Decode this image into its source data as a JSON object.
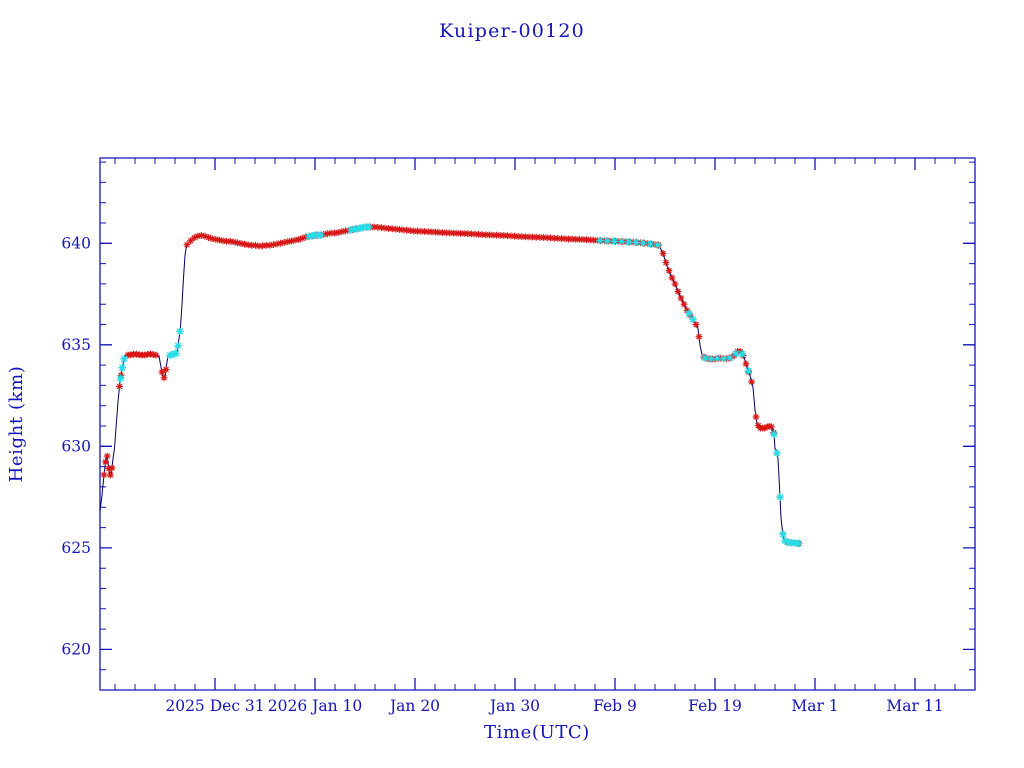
{
  "chart_data": {
    "type": "line",
    "title": "Kuiper-00120",
    "xlabel": "Time(UTC)",
    "ylabel": "Height (km)",
    "x_unit": "days since 2025-12-31 00:00 UTC",
    "xlim": [
      -11.5,
      76
    ],
    "ylim": [
      618.0,
      644.2
    ],
    "x_ticks": [
      {
        "day": 0,
        "label": "2025 Dec 31"
      },
      {
        "day": 10,
        "label": "2026 Jan 10"
      },
      {
        "day": 20,
        "label": "Jan 20"
      },
      {
        "day": 30,
        "label": "Jan 30"
      },
      {
        "day": 40,
        "label": "Feb 9"
      },
      {
        "day": 50,
        "label": "Feb 19"
      },
      {
        "day": 60,
        "label": "Mar 1"
      },
      {
        "day": 70,
        "label": "Mar 11"
      }
    ],
    "x_minor_step": 2,
    "y_ticks": [
      620,
      625,
      630,
      635,
      640
    ],
    "y_minor_step": 1,
    "grid": false,
    "legend": "none",
    "colors": {
      "axis": "#1414b8",
      "text": "#1414b8",
      "line": "#000060",
      "marker_red": "#d81414",
      "marker_cyan": "#28dce8"
    },
    "line": [
      [
        -11.5,
        626.8
      ],
      [
        -11.3,
        627.6
      ],
      [
        -11.1,
        628.6
      ],
      [
        -10.95,
        629.2
      ],
      [
        -10.8,
        629.6
      ],
      [
        -10.65,
        629.0
      ],
      [
        -10.5,
        628.55
      ],
      [
        -10.35,
        628.7
      ],
      [
        -10.2,
        629.4
      ],
      [
        -10.05,
        629.9
      ],
      [
        -9.9,
        630.9
      ],
      [
        -9.7,
        632.2
      ],
      [
        -9.5,
        633.2
      ],
      [
        -9.3,
        633.8
      ],
      [
        -9.1,
        634.3
      ],
      [
        -8.9,
        634.5
      ],
      [
        -8.5,
        634.5
      ],
      [
        -8.0,
        634.55
      ],
      [
        -7.5,
        634.5
      ],
      [
        -7.0,
        634.5
      ],
      [
        -6.5,
        634.55
      ],
      [
        -6.0,
        634.5
      ],
      [
        -5.6,
        634.45
      ],
      [
        -5.4,
        633.9
      ],
      [
        -5.2,
        633.4
      ],
      [
        -5.0,
        633.35
      ],
      [
        -4.85,
        634.0
      ],
      [
        -4.7,
        634.45
      ],
      [
        -4.4,
        634.5
      ],
      [
        -4.1,
        634.55
      ],
      [
        -3.8,
        634.6
      ],
      [
        -3.6,
        635.3
      ],
      [
        -3.45,
        635.85
      ],
      [
        -3.3,
        637.0
      ],
      [
        -3.15,
        638.3
      ],
      [
        -3.0,
        639.4
      ],
      [
        -2.85,
        639.9
      ],
      [
        -2.5,
        640.1
      ],
      [
        -2.0,
        640.3
      ],
      [
        -1.5,
        640.4
      ],
      [
        -1.0,
        640.35
      ],
      [
        -0.5,
        640.25
      ],
      [
        0.0,
        640.2
      ],
      [
        0.5,
        640.15
      ],
      [
        1.0,
        640.1
      ],
      [
        1.5,
        640.1
      ],
      [
        2.0,
        640.05
      ],
      [
        2.5,
        640.0
      ],
      [
        3.0,
        639.95
      ],
      [
        3.5,
        639.9
      ],
      [
        4.0,
        639.9
      ],
      [
        4.5,
        639.85
      ],
      [
        5.0,
        639.9
      ],
      [
        5.5,
        639.9
      ],
      [
        6.0,
        639.95
      ],
      [
        6.5,
        640.0
      ],
      [
        7.0,
        640.05
      ],
      [
        7.5,
        640.1
      ],
      [
        8.0,
        640.15
      ],
      [
        8.5,
        640.2
      ],
      [
        9.0,
        640.3
      ],
      [
        9.5,
        640.35
      ],
      [
        10.0,
        640.4
      ],
      [
        10.5,
        640.4
      ],
      [
        11.0,
        640.45
      ],
      [
        11.5,
        640.5
      ],
      [
        12.0,
        640.5
      ],
      [
        12.5,
        640.55
      ],
      [
        13.0,
        640.6
      ],
      [
        13.5,
        640.65
      ],
      [
        14.0,
        640.7
      ],
      [
        14.5,
        640.75
      ],
      [
        15.0,
        640.8
      ],
      [
        15.5,
        640.8
      ],
      [
        16.0,
        640.8
      ],
      [
        16.5,
        640.78
      ],
      [
        17.0,
        640.75
      ],
      [
        17.5,
        640.72
      ],
      [
        18.0,
        640.7
      ],
      [
        19.0,
        640.65
      ],
      [
        20.0,
        640.6
      ],
      [
        21.0,
        640.58
      ],
      [
        22.0,
        640.55
      ],
      [
        23.0,
        640.52
      ],
      [
        24.0,
        640.5
      ],
      [
        25.0,
        640.48
      ],
      [
        26.0,
        640.45
      ],
      [
        27.0,
        640.42
      ],
      [
        28.0,
        640.4
      ],
      [
        29.0,
        640.38
      ],
      [
        30.0,
        640.35
      ],
      [
        31.0,
        640.32
      ],
      [
        32.0,
        640.3
      ],
      [
        33.0,
        640.28
      ],
      [
        34.0,
        640.25
      ],
      [
        35.0,
        640.22
      ],
      [
        36.0,
        640.2
      ],
      [
        37.0,
        640.18
      ],
      [
        38.0,
        640.15
      ],
      [
        39.0,
        640.12
      ],
      [
        40.0,
        640.1
      ],
      [
        41.0,
        640.08
      ],
      [
        42.0,
        640.05
      ],
      [
        43.0,
        640.0
      ],
      [
        43.8,
        639.95
      ],
      [
        44.4,
        639.9
      ],
      [
        44.8,
        639.5
      ],
      [
        45.2,
        638.9
      ],
      [
        45.6,
        638.4
      ],
      [
        46.0,
        638.0
      ],
      [
        46.4,
        637.5
      ],
      [
        46.8,
        637.1
      ],
      [
        47.2,
        636.7
      ],
      [
        47.6,
        636.4
      ],
      [
        48.0,
        636.1
      ],
      [
        48.3,
        635.8
      ],
      [
        48.5,
        635.0
      ],
      [
        48.7,
        634.5
      ],
      [
        49.0,
        634.35
      ],
      [
        49.5,
        634.3
      ],
      [
        50.0,
        634.3
      ],
      [
        50.5,
        634.35
      ],
      [
        51.0,
        634.3
      ],
      [
        51.5,
        634.35
      ],
      [
        52.0,
        634.5
      ],
      [
        52.3,
        634.7
      ],
      [
        52.6,
        634.65
      ],
      [
        52.9,
        634.4
      ],
      [
        53.2,
        633.9
      ],
      [
        53.5,
        633.5
      ],
      [
        53.8,
        632.9
      ],
      [
        54.0,
        631.8
      ],
      [
        54.2,
        631.1
      ],
      [
        54.5,
        630.9
      ],
      [
        55.0,
        630.9
      ],
      [
        55.4,
        631.0
      ],
      [
        55.7,
        630.95
      ],
      [
        55.9,
        630.6
      ],
      [
        56.0,
        629.9
      ],
      [
        56.15,
        629.8
      ],
      [
        56.3,
        629.4
      ],
      [
        56.45,
        628.0
      ],
      [
        56.6,
        626.5
      ],
      [
        56.75,
        625.8
      ],
      [
        56.9,
        625.4
      ],
      [
        57.1,
        625.3
      ],
      [
        57.5,
        625.25
      ],
      [
        58.0,
        625.25
      ],
      [
        58.5,
        625.2
      ]
    ],
    "red_marker_ranges": [
      {
        "from": -11.1,
        "to": -10.3,
        "step": 0.16
      },
      {
        "from": -9.55,
        "to": -9.4,
        "step": 0.15
      },
      {
        "from": -8.7,
        "to": -5.9,
        "step": 0.28
      },
      {
        "from": -5.3,
        "to": -4.9,
        "step": 0.2
      },
      {
        "from": -2.8,
        "to": 44.4,
        "step": 0.36
      },
      {
        "from": 44.8,
        "to": 48.4,
        "step": 0.3
      },
      {
        "from": 48.9,
        "to": 53.9,
        "step": 0.28
      },
      {
        "from": 54.1,
        "to": 55.9,
        "step": 0.22
      },
      {
        "from": 56.8,
        "to": 58.5,
        "step": 0.4
      }
    ],
    "cyan_marker_ranges": [
      {
        "from": -9.45,
        "to": -9.05,
        "step": 0.18
      },
      {
        "from": -4.5,
        "to": -3.42,
        "step": 0.2
      },
      {
        "from": 9.4,
        "to": 10.6,
        "step": 0.3
      },
      {
        "from": 13.6,
        "to": 15.4,
        "step": 0.3
      },
      {
        "from": 38.5,
        "to": 44.6,
        "step": 0.72
      },
      {
        "from": 47.4,
        "to": 47.8,
        "step": 0.4
      },
      {
        "from": 49.0,
        "to": 53.6,
        "step": 0.62
      },
      {
        "from": 55.9,
        "to": 56.8,
        "step": 0.3
      },
      {
        "from": 57.0,
        "to": 58.4,
        "step": 0.33
      }
    ]
  }
}
